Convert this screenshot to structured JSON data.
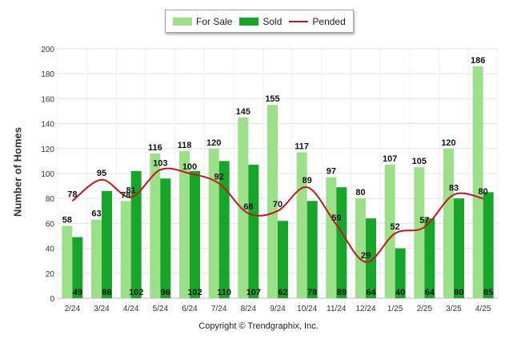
{
  "chart_data": {
    "type": "bar",
    "categories": [
      "2/24",
      "3/24",
      "4/24",
      "5/24",
      "6/24",
      "7/24",
      "8/24",
      "9/24",
      "10/24",
      "11/24",
      "12/24",
      "1/25",
      "2/25",
      "3/25",
      "4/25"
    ],
    "series": [
      {
        "name": "For Sale",
        "type": "bar",
        "color": "#9de08a",
        "values": [
          58,
          63,
          78,
          116,
          118,
          120,
          145,
          155,
          117,
          97,
          80,
          107,
          105,
          120,
          186
        ]
      },
      {
        "name": "Sold",
        "type": "bar",
        "color": "#17a52a",
        "values": [
          49,
          86,
          102,
          96,
          102,
          110,
          107,
          62,
          78,
          89,
          64,
          40,
          64,
          80,
          85
        ]
      },
      {
        "name": "Pended",
        "type": "line",
        "color": "#c4161c",
        "values": [
          78,
          95,
          81,
          103,
          100,
          92,
          68,
          70,
          89,
          59,
          29,
          52,
          57,
          83,
          80
        ]
      }
    ],
    "xlabel": "",
    "ylabel": "Number of Homes",
    "ylim": [
      0,
      200
    ],
    "yticks": [
      0,
      20,
      40,
      60,
      80,
      100,
      120,
      140,
      160,
      180,
      200
    ],
    "grid": true,
    "legend_position": "top-center"
  },
  "footer": {
    "copyright": "Copyright © Trendgraphix, Inc."
  }
}
